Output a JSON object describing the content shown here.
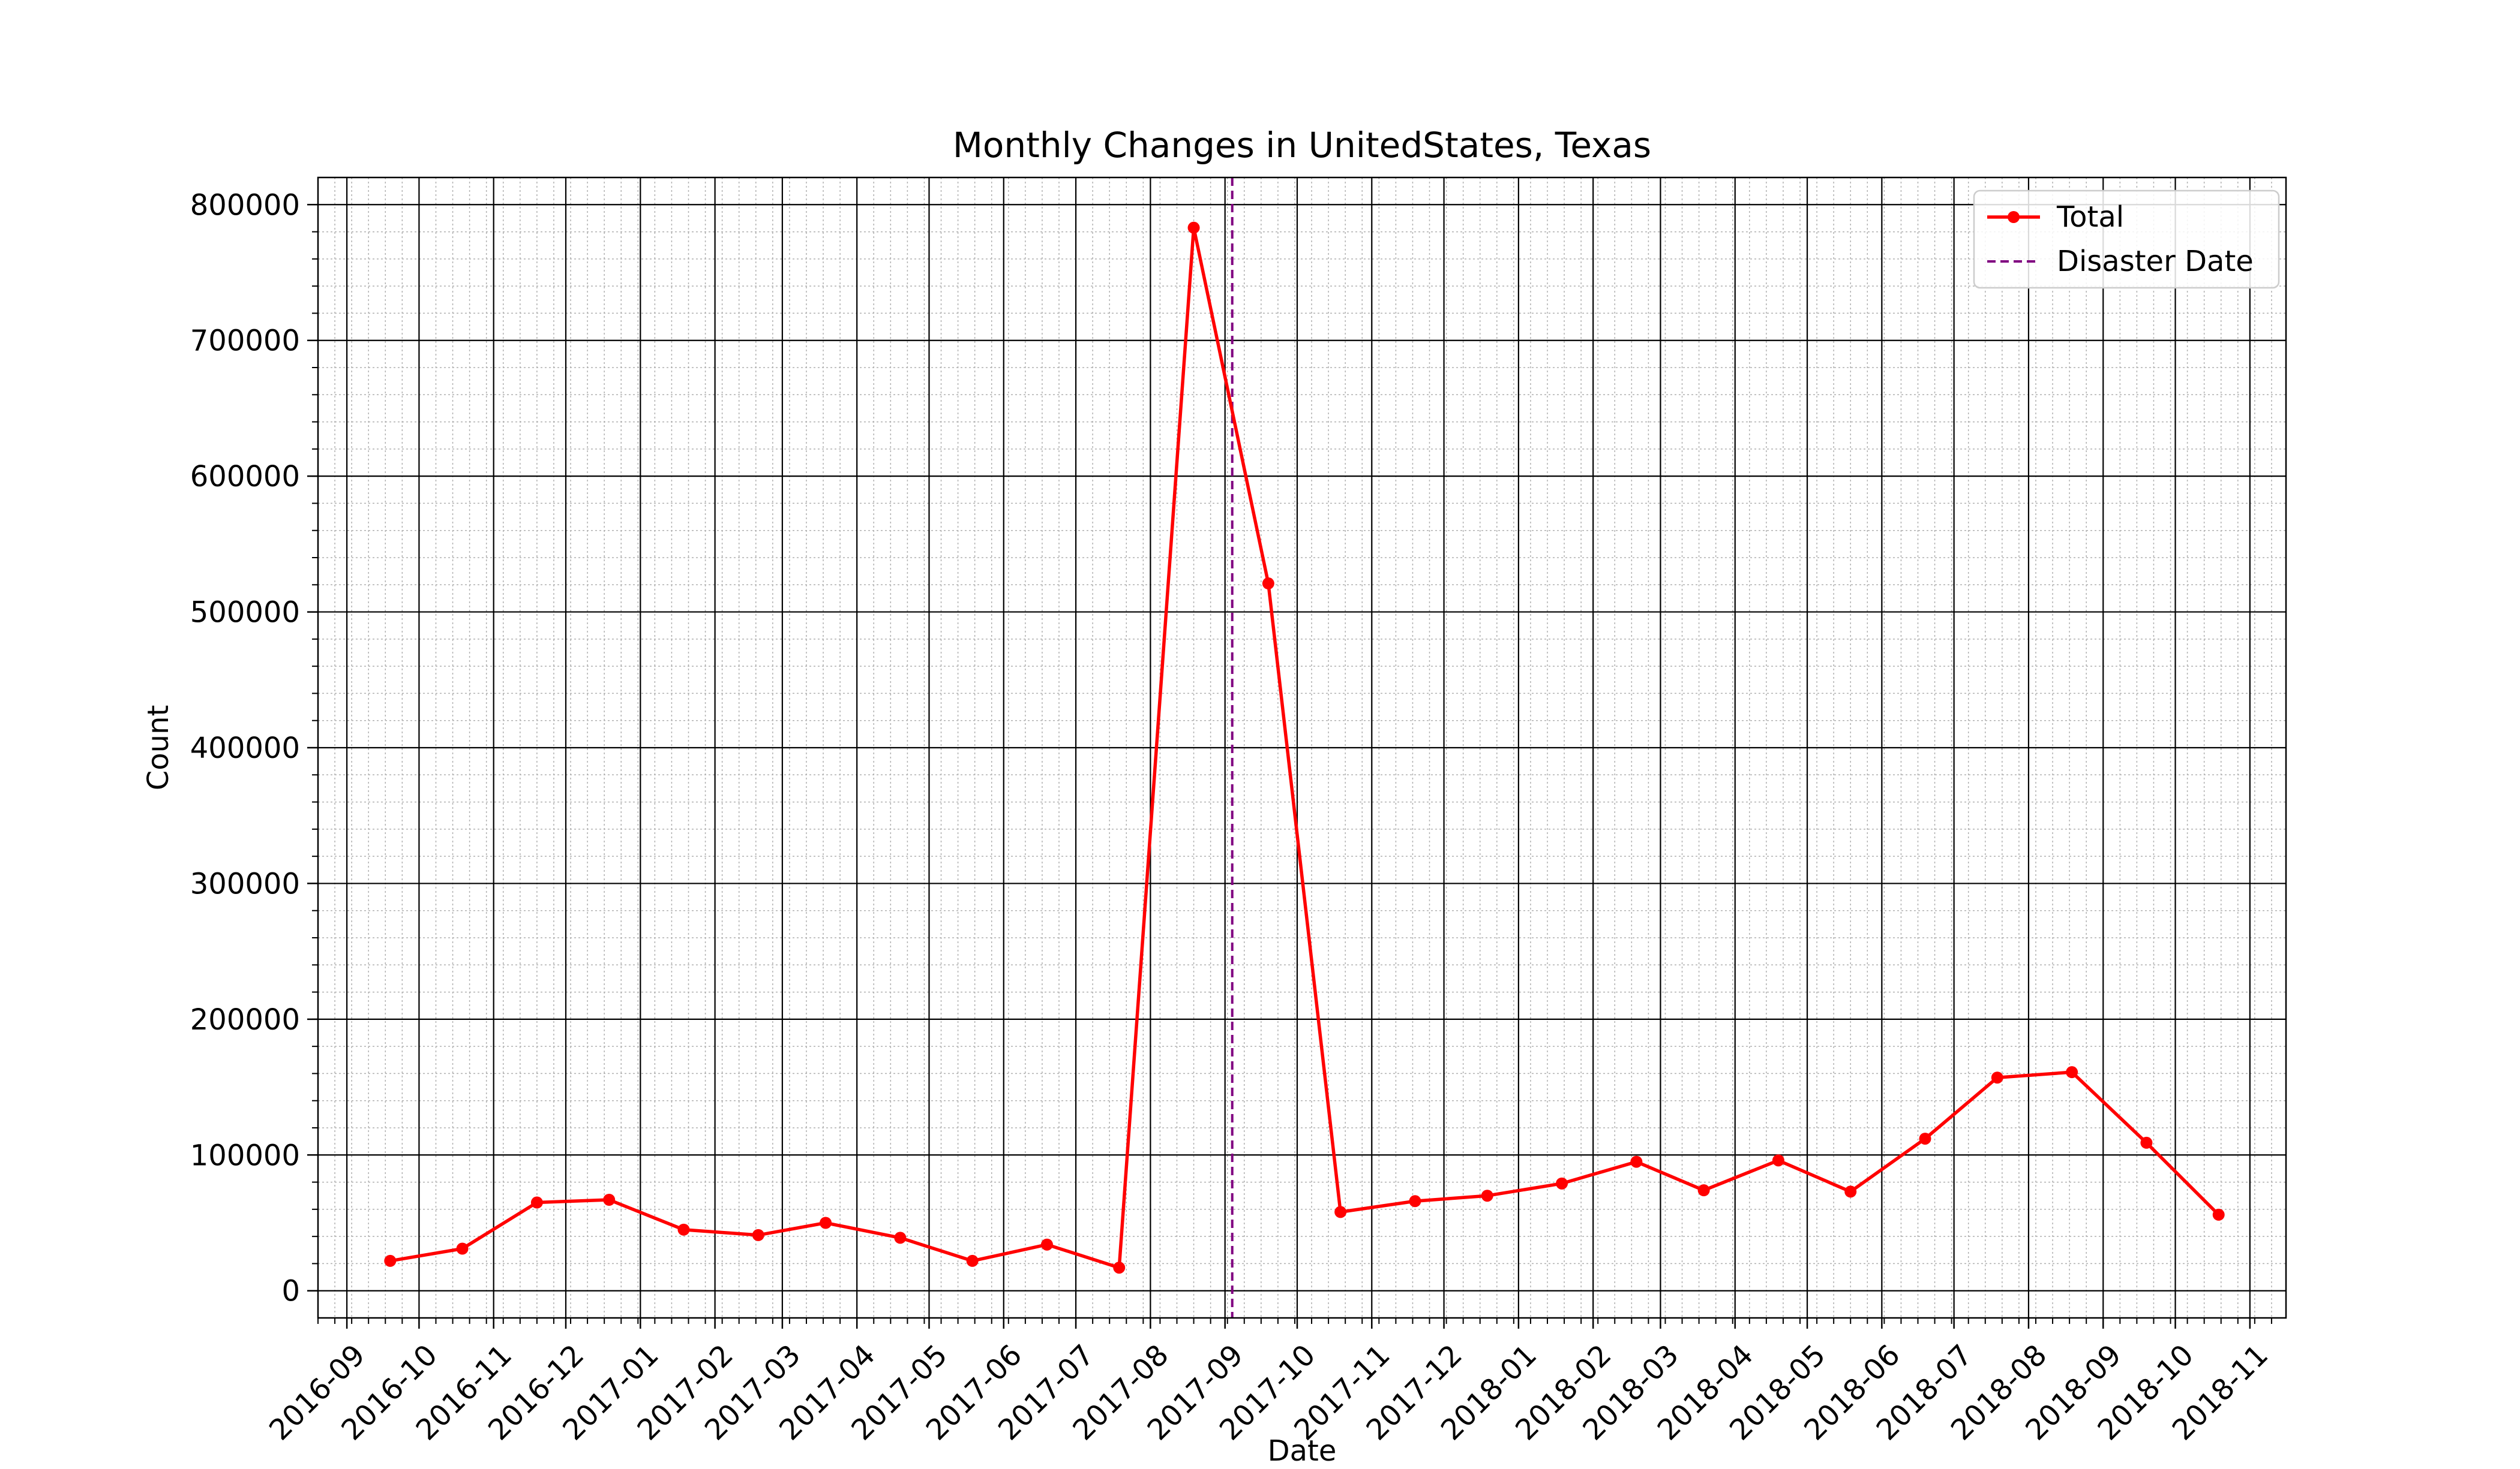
{
  "chart_data": {
    "type": "line",
    "title": "Monthly Changes in UnitedStates, Texas",
    "xlabel": "Date",
    "ylabel": "Count",
    "xlim": [
      "2016-08-20",
      "2018-11-16"
    ],
    "ylim": [
      -20000,
      820000
    ],
    "x_ticks": [
      "2016-09",
      "2016-10",
      "2016-11",
      "2016-12",
      "2017-01",
      "2017-02",
      "2017-03",
      "2017-04",
      "2017-05",
      "2017-06",
      "2017-07",
      "2017-08",
      "2017-09",
      "2017-10",
      "2017-11",
      "2017-12",
      "2018-01",
      "2018-02",
      "2018-03",
      "2018-04",
      "2018-05",
      "2018-06",
      "2018-07",
      "2018-08",
      "2018-09",
      "2018-10",
      "2018-11"
    ],
    "y_ticks": [
      0,
      100000,
      200000,
      300000,
      400000,
      500000,
      600000,
      700000,
      800000
    ],
    "y_tick_labels": [
      "0",
      "100000",
      "200000",
      "300000",
      "400000",
      "500000",
      "600000",
      "700000",
      "800000"
    ],
    "grid": true,
    "legend_position": "top-right",
    "series": [
      {
        "name": "Total",
        "color": "#ff0000",
        "x": [
          "2016-09-19",
          "2016-10-19",
          "2016-11-19",
          "2016-12-19",
          "2017-01-19",
          "2017-02-19",
          "2017-03-19",
          "2017-04-19",
          "2017-05-19",
          "2017-06-19",
          "2017-07-19",
          "2017-08-19",
          "2017-09-19",
          "2017-10-19",
          "2017-11-19",
          "2017-12-19",
          "2018-01-19",
          "2018-02-19",
          "2018-03-19",
          "2018-04-19",
          "2018-05-19",
          "2018-06-19",
          "2018-07-19",
          "2018-08-19",
          "2018-09-19",
          "2018-10-19"
        ],
        "values": [
          22000,
          31000,
          65000,
          67000,
          45000,
          41000,
          50000,
          39000,
          22000,
          34000,
          17000,
          783000,
          521000,
          58000,
          66000,
          70000,
          79000,
          95000,
          74000,
          96000,
          73000,
          112000,
          157000,
          161000,
          109000,
          56000
        ]
      }
    ],
    "reference_lines": [
      {
        "name": "Disaster Date",
        "x": "2017-08-35",
        "color": "#800080",
        "style": "dashed"
      }
    ]
  }
}
